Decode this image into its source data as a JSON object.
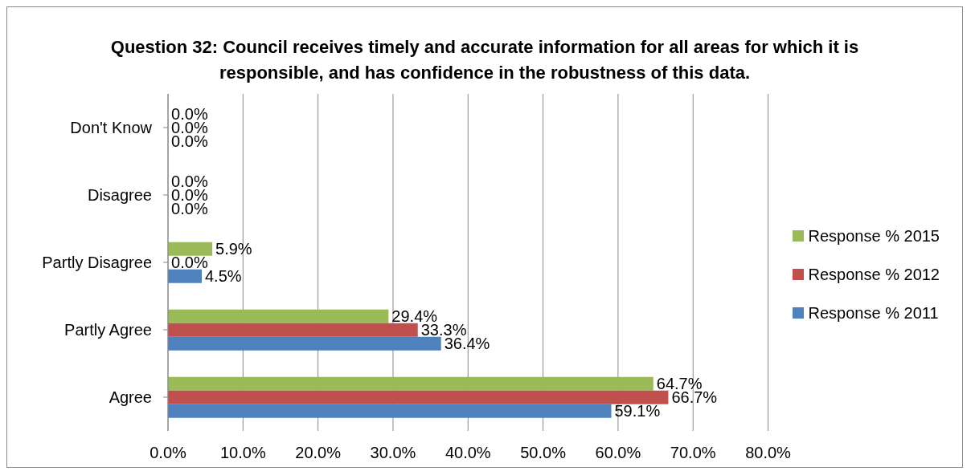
{
  "chart_data": {
    "type": "bar",
    "orientation": "horizontal",
    "title": "Question 32: Council receives timely and accurate information for all areas for which it is responsible, and has confidence in the robustness of this data.",
    "categories": [
      "Don't Know",
      "Disagree",
      "Partly Disagree",
      "Partly Agree",
      "Agree"
    ],
    "series": [
      {
        "name": "Response % 2015",
        "color": "#9bbb59",
        "values": [
          0,
          0,
          5.9,
          29.4,
          64.7
        ],
        "value_labels": [
          "0.0%",
          "0.0%",
          "5.9%",
          "29.4%",
          "64.7%"
        ]
      },
      {
        "name": "Response % 2012",
        "color": "#c0504d",
        "values": [
          0,
          0,
          0,
          33.3,
          66.7
        ],
        "value_labels": [
          "0.0%",
          "0.0%",
          "0.0%",
          "33.3%",
          "66.7%"
        ]
      },
      {
        "name": "Response % 2011",
        "color": "#4f81bd",
        "values": [
          0,
          0,
          4.5,
          36.4,
          59.1
        ],
        "value_labels": [
          "0.0%",
          "0.0%",
          "4.5%",
          "36.4%",
          "59.1%"
        ]
      }
    ],
    "xlim": [
      0,
      80
    ],
    "xticks": [
      {
        "value": 0,
        "label": "0.0%"
      },
      {
        "value": 10,
        "label": "10.0%"
      },
      {
        "value": 20,
        "label": "20.0%"
      },
      {
        "value": 30,
        "label": "30.0%"
      },
      {
        "value": 40,
        "label": "40.0%"
      },
      {
        "value": 50,
        "label": "50.0%"
      },
      {
        "value": 60,
        "label": "60.0%"
      },
      {
        "value": 70,
        "label": "70.0%"
      },
      {
        "value": 80,
        "label": "80.0%"
      }
    ],
    "grid": "x",
    "legend": "right"
  }
}
